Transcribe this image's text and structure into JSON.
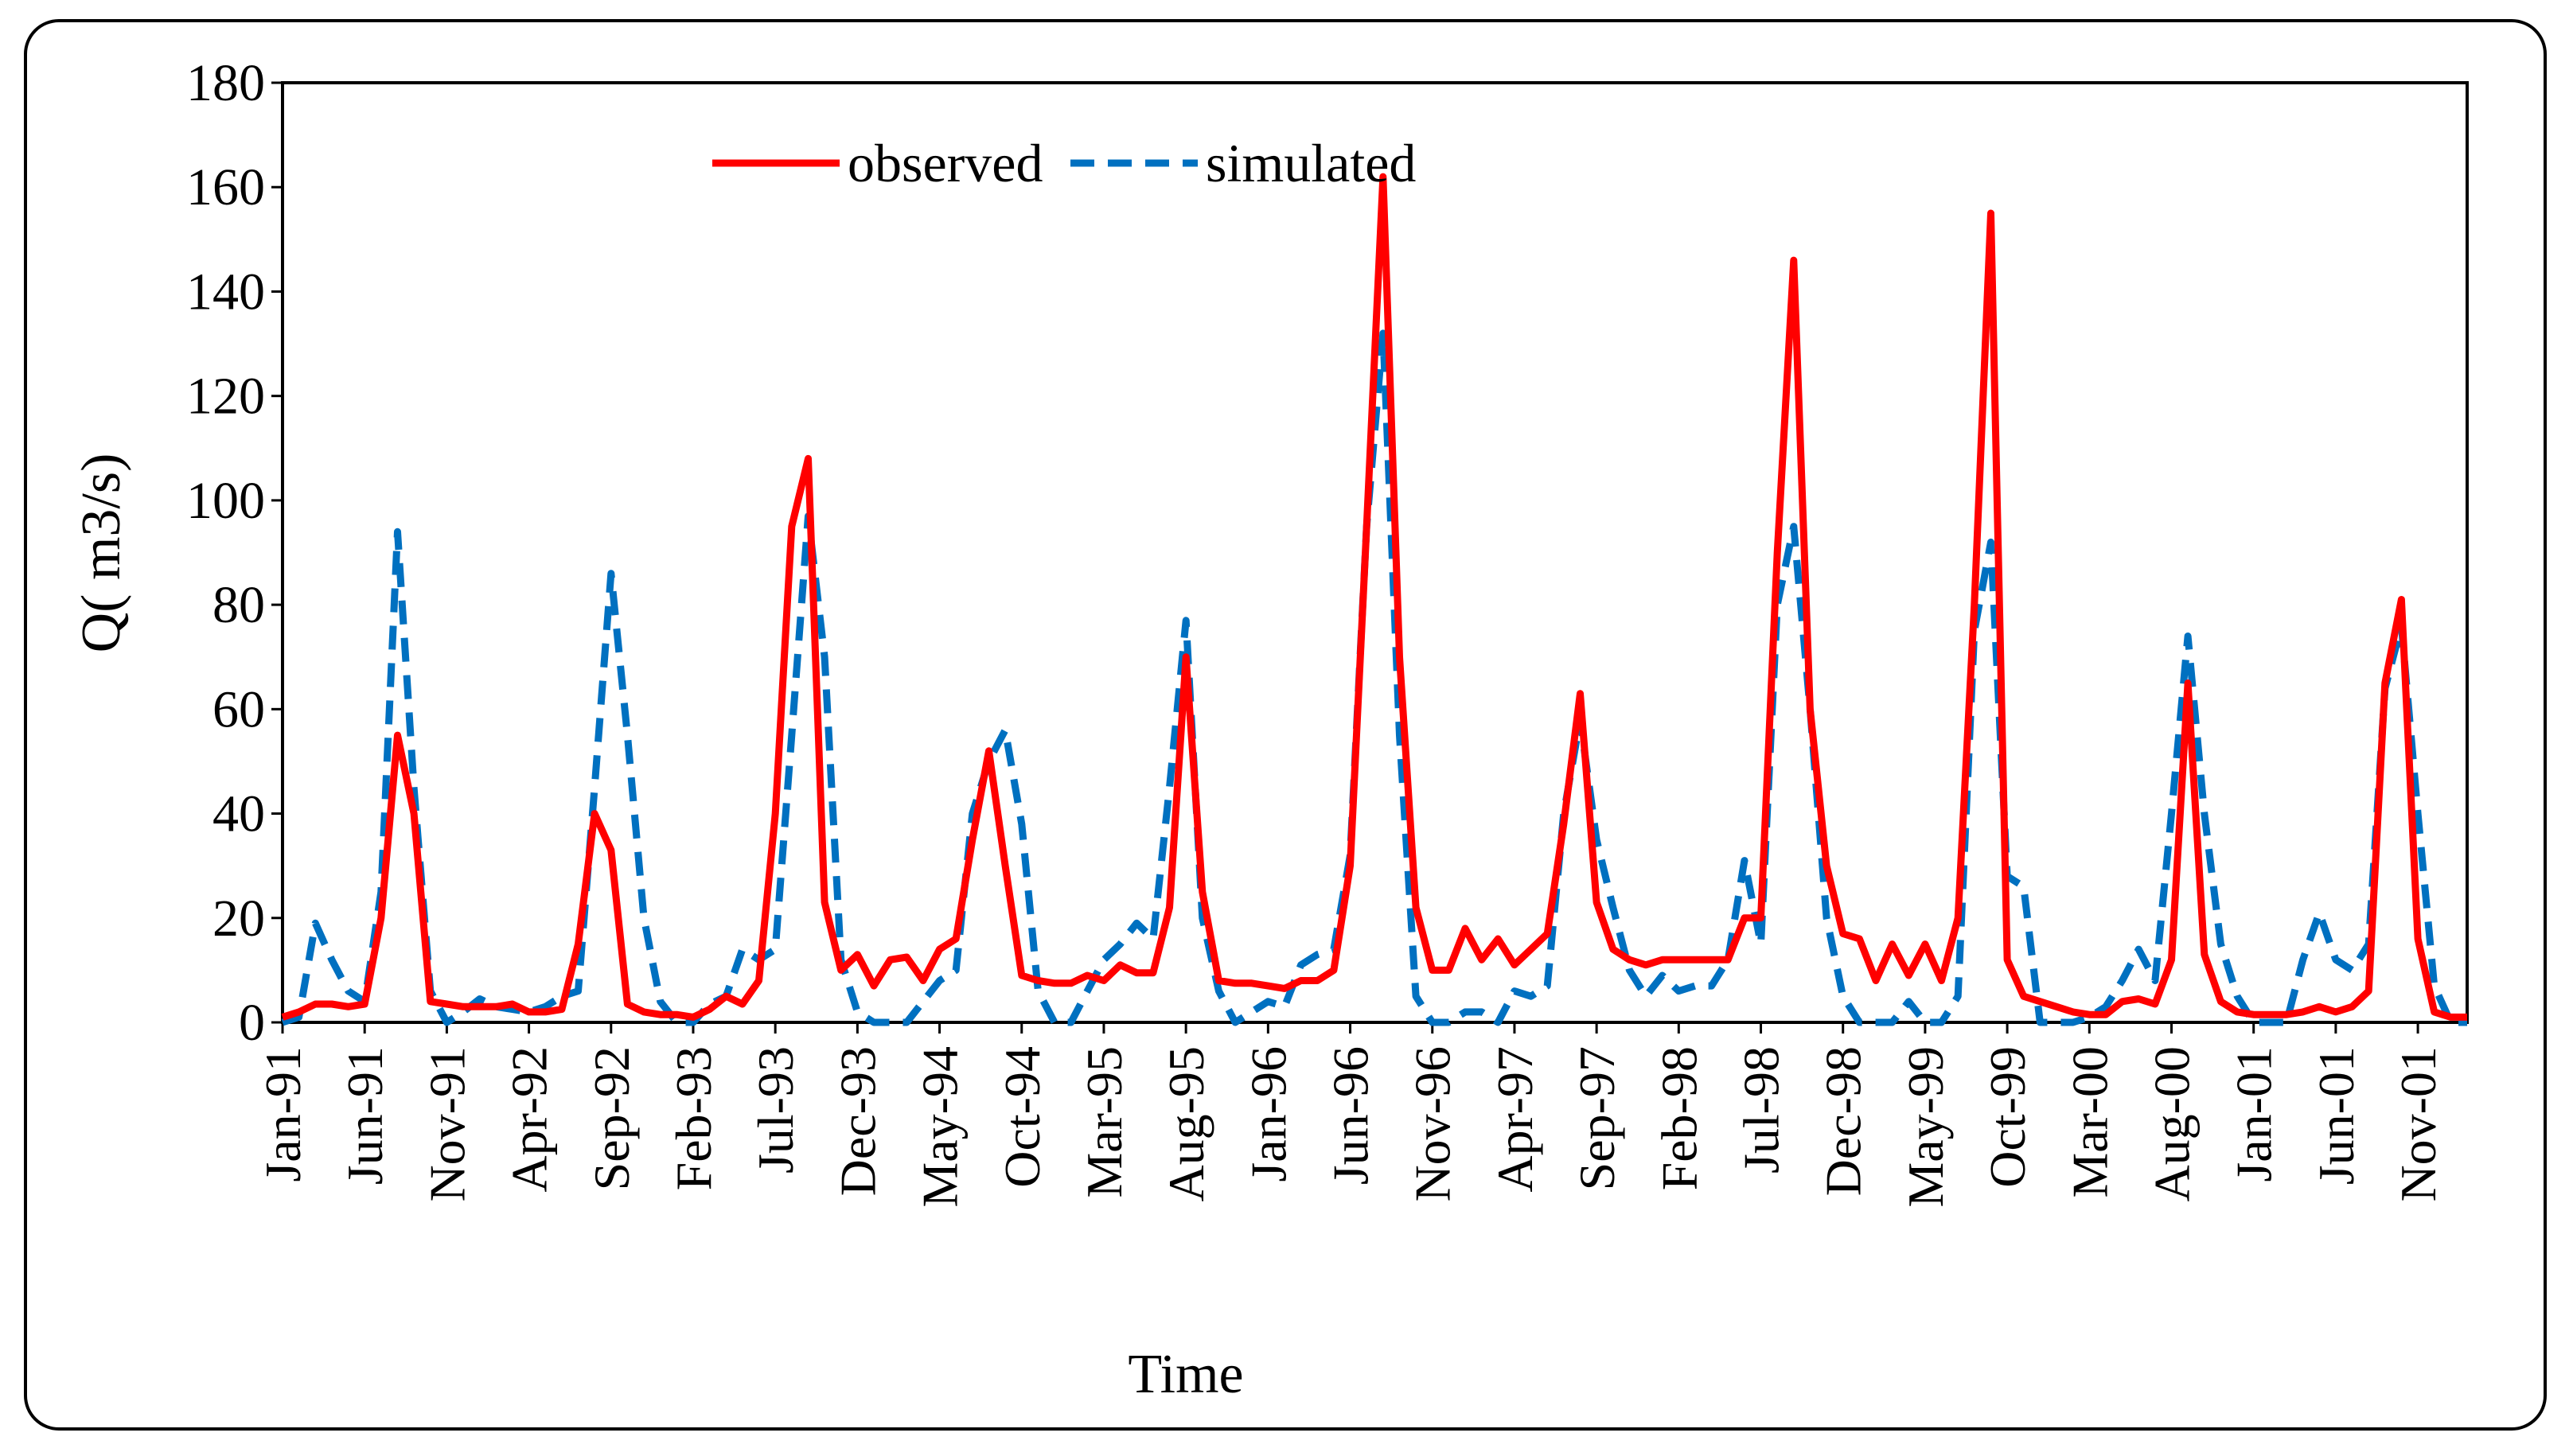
{
  "chart_data": {
    "type": "line",
    "title": "",
    "xlabel": "Time",
    "ylabel": "Q( m3/s)",
    "ylim": [
      0,
      180
    ],
    "yticks": [
      0,
      20,
      40,
      60,
      80,
      100,
      120,
      140,
      160,
      180
    ],
    "grid": false,
    "legend_position": "top-center",
    "start_label": "Jan-91",
    "x_tick_step_months": 5,
    "x_tick_labels": [
      "Jan-91",
      "Jun-91",
      "Nov-91",
      "Apr-92",
      "Sep-92",
      "Feb-93",
      "Jul-93",
      "Dec-93",
      "May-94",
      "Oct-94",
      "Mar-95",
      "Aug-95",
      "Jan-96",
      "Jun-96",
      "Nov-96",
      "Apr-97",
      "Sep-97",
      "Feb-98",
      "Jul-98",
      "Dec-98",
      "May-99",
      "Oct-99",
      "Mar-00",
      "Aug-00",
      "Jan-01",
      "Jun-01",
      "Nov-01"
    ],
    "colors": {
      "observed": "#ff0000",
      "simulated": "#0070c0"
    },
    "series": [
      {
        "name": "observed",
        "style": "solid",
        "values": [
          1,
          2,
          3.5,
          3.5,
          3,
          3.5,
          20,
          55,
          40,
          4,
          3.5,
          3,
          3,
          3,
          3.5,
          2,
          2,
          2.5,
          15,
          40,
          33,
          3.5,
          2,
          1.5,
          1.5,
          1,
          2.5,
          5,
          3.5,
          8,
          40,
          95,
          108,
          23,
          10,
          13,
          7,
          12,
          12.5,
          8,
          14,
          16,
          35,
          52,
          30,
          9,
          8,
          7.5,
          7.5,
          9,
          8,
          11,
          9.5,
          9.5,
          22,
          70,
          25,
          8,
          7.5,
          7.5,
          7,
          6.5,
          8,
          8,
          10,
          30,
          95,
          162,
          70,
          22,
          10,
          10,
          18,
          12,
          16,
          11,
          14,
          17,
          38,
          63,
          23,
          14,
          12,
          11,
          12,
          12,
          12,
          12,
          12,
          20,
          20,
          90,
          146,
          60,
          30,
          17,
          16,
          8,
          15,
          9,
          15,
          8,
          20,
          80,
          155,
          12,
          5,
          4,
          3,
          2,
          1.5,
          1.5,
          4,
          4.5,
          3.5,
          12,
          65,
          13,
          4,
          2,
          1.5,
          1.5,
          1.5,
          2,
          3,
          2,
          3,
          6,
          65,
          81,
          16,
          2,
          1,
          1
        ]
      },
      {
        "name": "simulated",
        "style": "dashed",
        "values": [
          0,
          1,
          19,
          12,
          6,
          4,
          25,
          94,
          45,
          6,
          0,
          2,
          4.5,
          3,
          2.5,
          2,
          3,
          5,
          6,
          45,
          86,
          55,
          20,
          4,
          0,
          0,
          3.5,
          5,
          14,
          12,
          14,
          55,
          97,
          70,
          12,
          2,
          0,
          0,
          0,
          4,
          8,
          10,
          40,
          50,
          56,
          38,
          6,
          0,
          0,
          6,
          12,
          15,
          19,
          16,
          45,
          77,
          20,
          6,
          0,
          2,
          4,
          3,
          11,
          13,
          14,
          32,
          95,
          132,
          55,
          5,
          0,
          0,
          2,
          2,
          0,
          6,
          5,
          7,
          40,
          58,
          35,
          22,
          10,
          5,
          9,
          6,
          7,
          7,
          12,
          31,
          15,
          80,
          95,
          60,
          20,
          5,
          0,
          0,
          0,
          4,
          0,
          0,
          5,
          75,
          92,
          28,
          26,
          0,
          0,
          0,
          1,
          3,
          8,
          14,
          8,
          40,
          74,
          40,
          15,
          5,
          0,
          0,
          0,
          12,
          21,
          12,
          10,
          15,
          64,
          76,
          40,
          7,
          0,
          0
        ]
      }
    ]
  }
}
